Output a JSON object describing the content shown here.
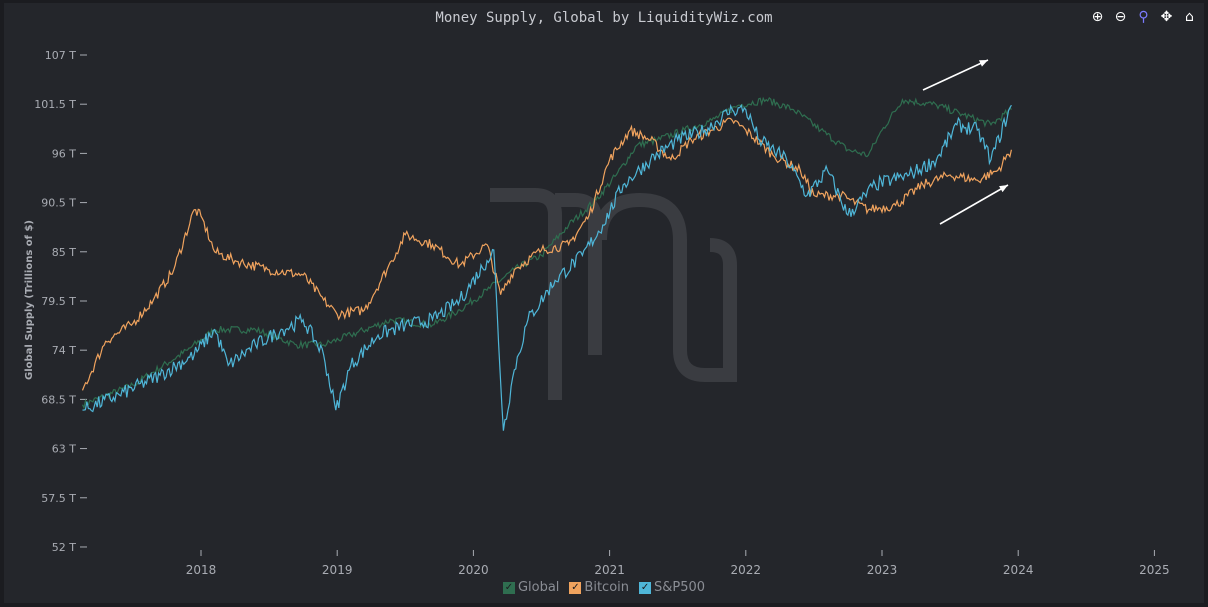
{
  "toolbar": {
    "icons": [
      "zoom-in-icon",
      "zoom-out-icon",
      "search-zoom-icon",
      "pan-icon",
      "home-icon"
    ]
  },
  "chart_data": {
    "type": "line",
    "title": "Money Supply, Global by LiquidityWiz.com",
    "xlabel": "",
    "ylabel": "Global Supply (Trillions of $)",
    "ylim": [
      52,
      107
    ],
    "xlim": [
      2017.0,
      2025.1
    ],
    "yticks": [
      "107 T",
      "101.5 T",
      "96 T",
      "90.5 T",
      "85 T",
      "79.5 T",
      "74 T",
      "68.5 T",
      "63 T",
      "57.5 T",
      "52 T"
    ],
    "ytick_values": [
      107,
      101.5,
      96,
      90.5,
      85,
      79.5,
      74,
      68.5,
      63,
      57.5,
      52
    ],
    "xticks": [
      "2018",
      "2019",
      "2020",
      "2021",
      "2022",
      "2023",
      "2024",
      "2025"
    ],
    "grid": false,
    "legend_placement": "bottom",
    "series": [
      {
        "name": "Global",
        "color": "#2f6e50",
        "points": [
          [
            2017.13,
            67.9
          ],
          [
            2017.5,
            70.1
          ],
          [
            2017.9,
            74
          ],
          [
            2018.1,
            76.3
          ],
          [
            2018.4,
            76.3
          ],
          [
            2018.7,
            74.6
          ],
          [
            2018.9,
            74.6
          ],
          [
            2019.1,
            75.7
          ],
          [
            2019.4,
            77.4
          ],
          [
            2019.7,
            76.8
          ],
          [
            2019.9,
            78.5
          ],
          [
            2020.1,
            80.7
          ],
          [
            2020.3,
            83
          ],
          [
            2020.5,
            84.6
          ],
          [
            2020.7,
            88
          ],
          [
            2020.9,
            90.8
          ],
          [
            2021.05,
            93.6
          ],
          [
            2021.2,
            96.9
          ],
          [
            2021.35,
            97.5
          ],
          [
            2021.55,
            98.6
          ],
          [
            2021.75,
            99.7
          ],
          [
            2021.95,
            101.4
          ],
          [
            2022.15,
            102
          ],
          [
            2022.35,
            100.9
          ],
          [
            2022.55,
            98.6
          ],
          [
            2022.75,
            96.4
          ],
          [
            2022.9,
            95.8
          ],
          [
            2023.0,
            98.6
          ],
          [
            2023.15,
            102
          ],
          [
            2023.4,
            101.4
          ],
          [
            2023.6,
            100.3
          ],
          [
            2023.8,
            99.2
          ],
          [
            2023.95,
            100.9
          ]
        ]
      },
      {
        "name": "Bitcoin",
        "color": "#f0a35e",
        "points": [
          [
            2017.13,
            69.5
          ],
          [
            2017.3,
            75
          ],
          [
            2017.5,
            77
          ],
          [
            2017.65,
            79.6
          ],
          [
            2017.8,
            83
          ],
          [
            2017.95,
            89.7
          ],
          [
            2018.0,
            89
          ],
          [
            2018.1,
            85
          ],
          [
            2018.25,
            84
          ],
          [
            2018.5,
            83
          ],
          [
            2018.75,
            82.4
          ],
          [
            2018.9,
            79.6
          ],
          [
            2019.0,
            78
          ],
          [
            2019.2,
            78.5
          ],
          [
            2019.4,
            84
          ],
          [
            2019.5,
            86.9
          ],
          [
            2019.7,
            85.8
          ],
          [
            2019.9,
            83.5
          ],
          [
            2020.1,
            85.8
          ],
          [
            2020.2,
            80.2
          ],
          [
            2020.3,
            83
          ],
          [
            2020.5,
            85.2
          ],
          [
            2020.7,
            85.8
          ],
          [
            2020.85,
            89.1
          ],
          [
            2021.0,
            95.3
          ],
          [
            2021.15,
            98.6
          ],
          [
            2021.3,
            97.5
          ],
          [
            2021.45,
            95.3
          ],
          [
            2021.6,
            97.5
          ],
          [
            2021.75,
            98.6
          ],
          [
            2021.9,
            99.7
          ],
          [
            2022.0,
            98.6
          ],
          [
            2022.2,
            95.8
          ],
          [
            2022.4,
            94.1
          ],
          [
            2022.5,
            91.3
          ],
          [
            2022.7,
            91.3
          ],
          [
            2022.9,
            89.7
          ],
          [
            2023.1,
            90.2
          ],
          [
            2023.3,
            92.5
          ],
          [
            2023.5,
            93.6
          ],
          [
            2023.7,
            93
          ],
          [
            2023.85,
            94.1
          ],
          [
            2023.95,
            96.4
          ]
        ]
      },
      {
        "name": "S&P500",
        "color": "#4fb6d8",
        "points": [
          [
            2017.13,
            67.3
          ],
          [
            2017.4,
            69
          ],
          [
            2017.7,
            71.2
          ],
          [
            2017.95,
            73.5
          ],
          [
            2018.1,
            76.3
          ],
          [
            2018.2,
            72.3
          ],
          [
            2018.4,
            74.6
          ],
          [
            2018.6,
            76.3
          ],
          [
            2018.75,
            77.4
          ],
          [
            2018.9,
            73.5
          ],
          [
            2018.99,
            67.3
          ],
          [
            2019.1,
            72.3
          ],
          [
            2019.3,
            75.7
          ],
          [
            2019.5,
            76.8
          ],
          [
            2019.7,
            77.4
          ],
          [
            2019.9,
            79.6
          ],
          [
            2020.1,
            84
          ],
          [
            2020.15,
            85.2
          ],
          [
            2020.22,
            65
          ],
          [
            2020.3,
            71.8
          ],
          [
            2020.4,
            77.4
          ],
          [
            2020.6,
            81.8
          ],
          [
            2020.8,
            84.6
          ],
          [
            2020.95,
            88
          ],
          [
            2021.1,
            92.5
          ],
          [
            2021.3,
            95.3
          ],
          [
            2021.5,
            97.5
          ],
          [
            2021.7,
            98.6
          ],
          [
            2021.9,
            100.9
          ],
          [
            2022.0,
            100.9
          ],
          [
            2022.1,
            97.5
          ],
          [
            2022.3,
            95.3
          ],
          [
            2022.45,
            91.3
          ],
          [
            2022.6,
            94.1
          ],
          [
            2022.75,
            89.1
          ],
          [
            2022.95,
            92.5
          ],
          [
            2023.2,
            93.6
          ],
          [
            2023.4,
            95.3
          ],
          [
            2023.55,
            99.2
          ],
          [
            2023.7,
            98.6
          ],
          [
            2023.8,
            95.3
          ],
          [
            2023.95,
            101.4
          ]
        ]
      }
    ]
  }
}
